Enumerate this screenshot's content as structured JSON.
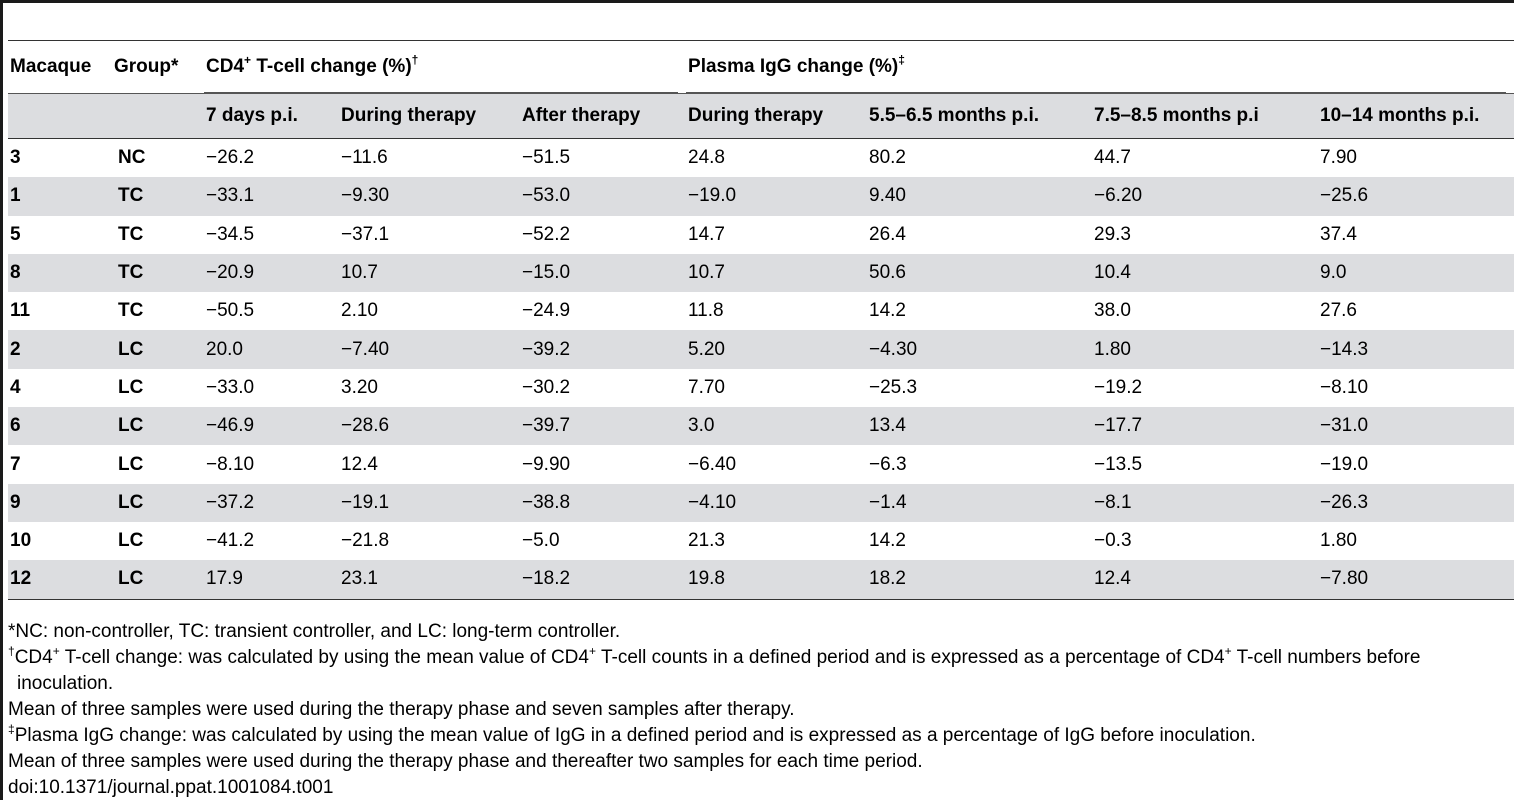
{
  "headers": {
    "macaque": "Macaque",
    "group": "Group*",
    "cd4_group": "CD4⁺ T-cell change (%)†",
    "igg_group": "Plasma IgG change (%)‡",
    "sub": [
      "7 days p.i.",
      "During therapy",
      "After therapy",
      "During therapy",
      "5.5–6.5 months p.i.",
      "7.5–8.5 months p.i",
      "10–14 months p.i."
    ]
  },
  "rows": [
    [
      "3",
      "NC",
      "−26.2",
      "−11.6",
      "−51.5",
      "24.8",
      "80.2",
      "44.7",
      "7.90"
    ],
    [
      "1",
      "TC",
      "−33.1",
      "−9.30",
      "−53.0",
      "−19.0",
      "9.40",
      "−6.20",
      "−25.6"
    ],
    [
      "5",
      "TC",
      "−34.5",
      "−37.1",
      "−52.2",
      "14.7",
      "26.4",
      "29.3",
      "37.4"
    ],
    [
      "8",
      "TC",
      "−20.9",
      "10.7",
      "−15.0",
      "10.7",
      "50.6",
      "10.4",
      "9.0"
    ],
    [
      "11",
      "TC",
      "−50.5",
      "2.10",
      "−24.9",
      "11.8",
      "14.2",
      "38.0",
      "27.6"
    ],
    [
      "2",
      "LC",
      "20.0",
      "−7.40",
      "−39.2",
      "5.20",
      "−4.30",
      "1.80",
      "−14.3"
    ],
    [
      "4",
      "LC",
      "−33.0",
      "3.20",
      "−30.2",
      "7.70",
      "−25.3",
      "−19.2",
      "−8.10"
    ],
    [
      "6",
      "LC",
      "−46.9",
      "−28.6",
      "−39.7",
      "3.0",
      "13.4",
      "−17.7",
      "−31.0"
    ],
    [
      "7",
      "LC",
      "−8.10",
      "12.4",
      "−9.90",
      "−6.40",
      "−6.3",
      "−13.5",
      "−19.0"
    ],
    [
      "9",
      "LC",
      "−37.2",
      "−19.1",
      "−38.8",
      "−4.10",
      "−1.4",
      "−8.1",
      "−26.3"
    ],
    [
      "10",
      "LC",
      "−41.2",
      "−21.8",
      "−5.0",
      "21.3",
      "14.2",
      "−0.3",
      "1.80"
    ],
    [
      "12",
      "LC",
      "17.9",
      "23.1",
      "−18.2",
      "19.8",
      "18.2",
      "12.4",
      "−7.80"
    ]
  ],
  "notes": {
    "n1": "*NC: non-controller, TC: transient controller, and LC: long-term controller.",
    "n2": "†CD4⁺ T-cell change: was calculated by using the mean value of CD4⁺ T-cell counts in a defined period and is expressed as a percentage of CD4⁺ T-cell numbers before",
    "n2b": "inoculation.",
    "n3": "Mean of three samples were used during the therapy phase and seven samples after therapy.",
    "n4": "‡Plasma IgG change: was calculated by using the mean value of IgG in a defined period and is expressed as a percentage of IgG before inoculation.",
    "n5": "Mean of three samples were used during the therapy phase and thereafter two samples for each time period.",
    "doi": "doi:10.1371/journal.ppat.1001084.t001"
  }
}
